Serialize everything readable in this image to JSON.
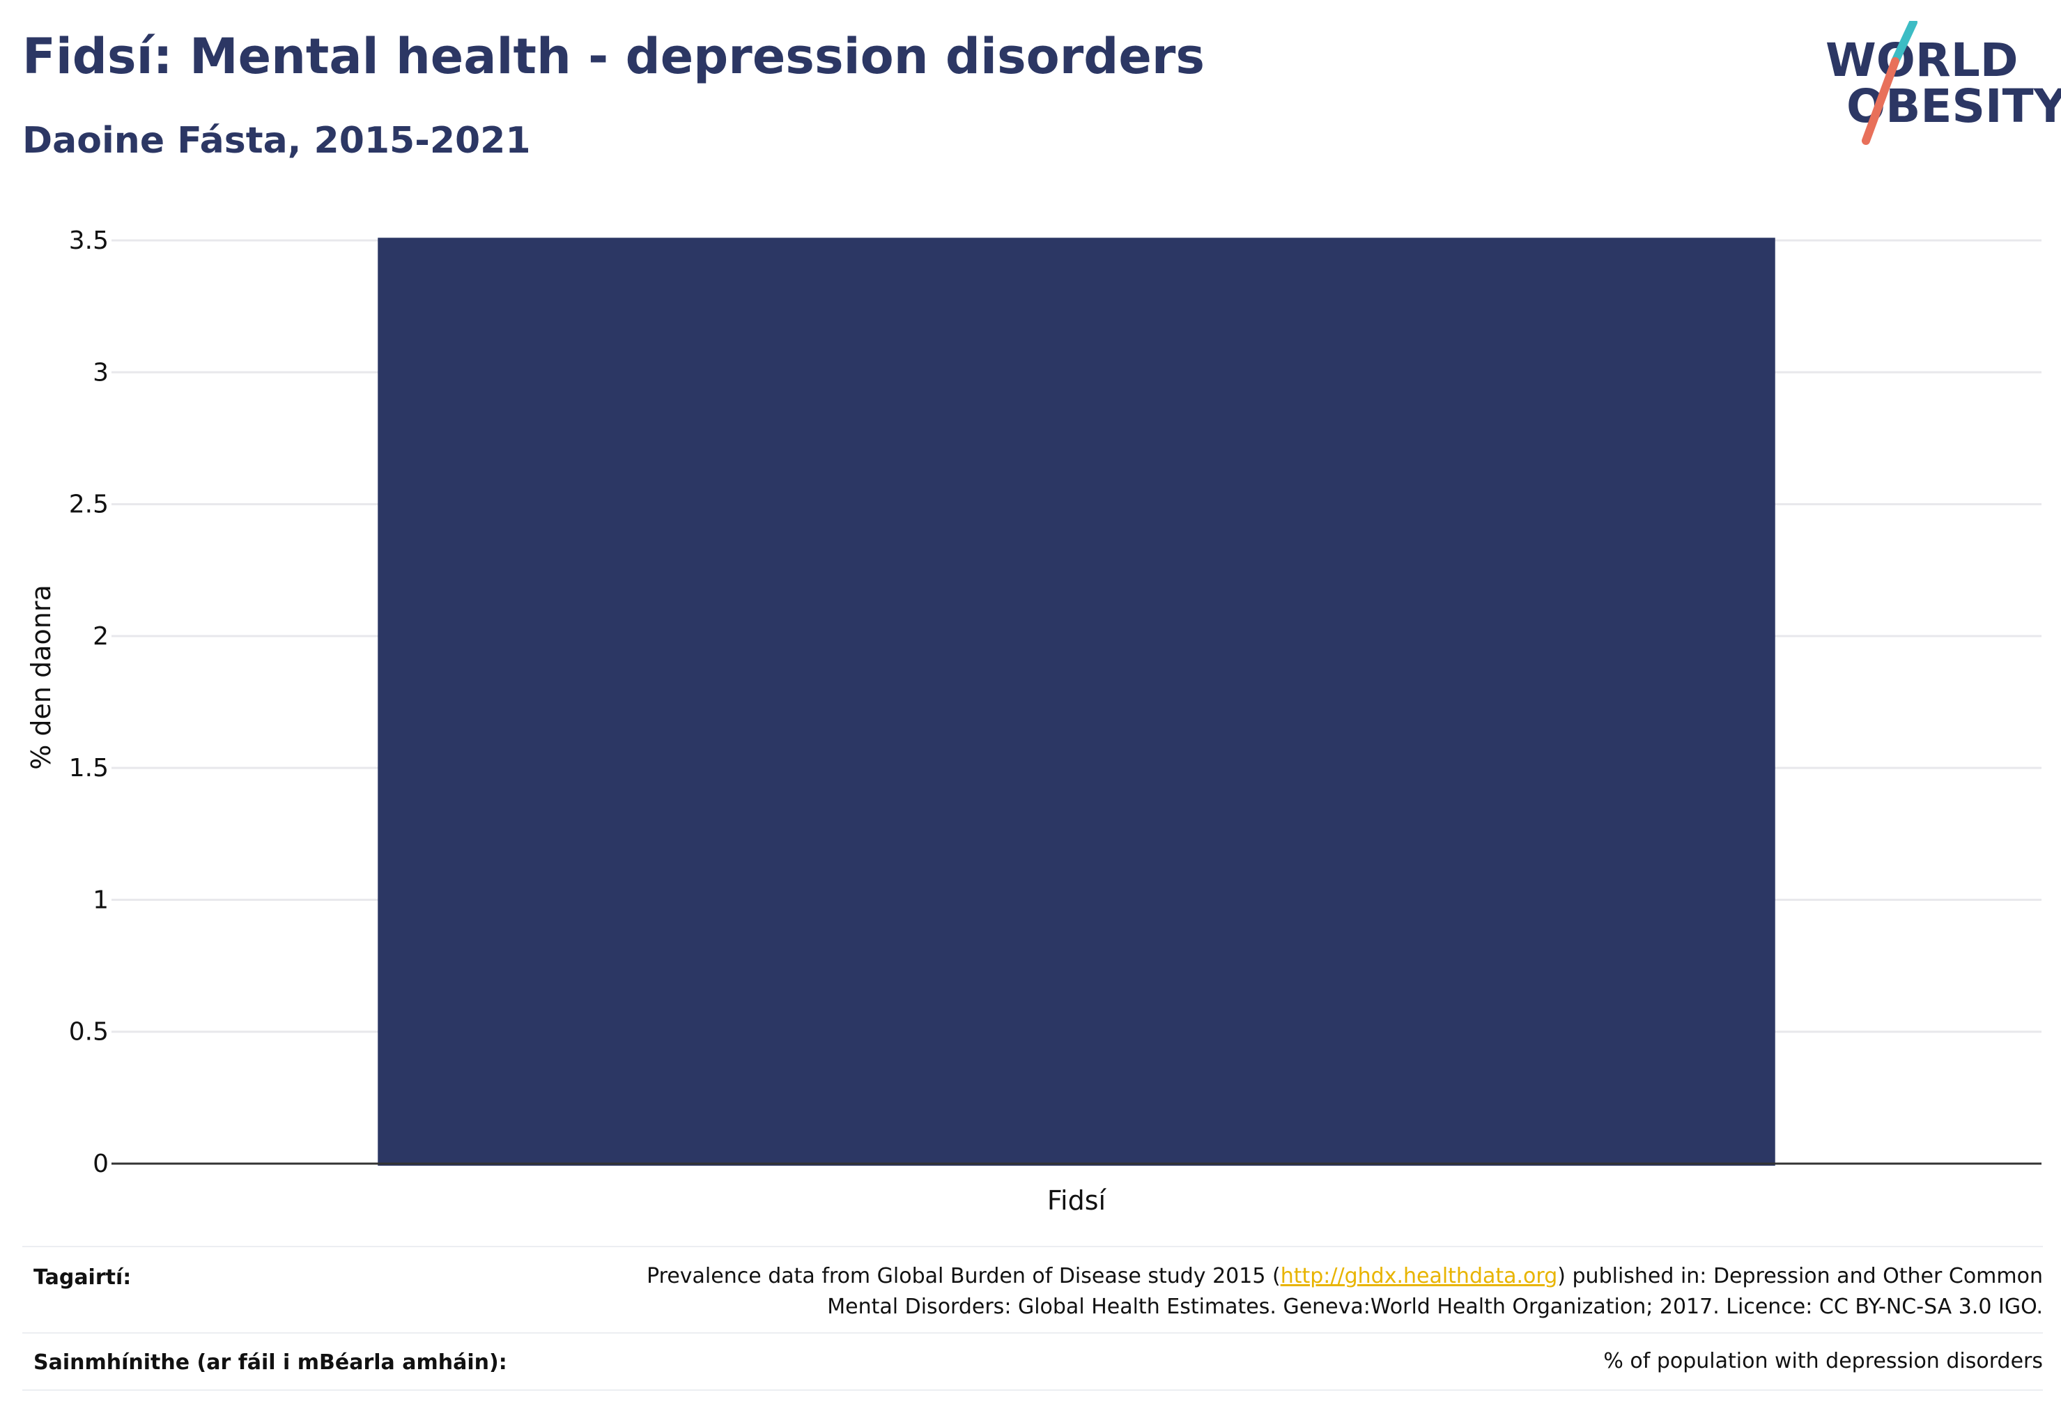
{
  "header": {
    "title": "Fidsí: Mental health - depression disorders",
    "subtitle": "Daoine Fásta, 2015-2021"
  },
  "logo": {
    "line1": "WORLD",
    "line2": "OBESITY"
  },
  "chart_data": {
    "type": "bar",
    "categories": [
      "Fidsí"
    ],
    "values": [
      3.51
    ],
    "ylabel": "% den daonra",
    "ylim": [
      0,
      3.5
    ],
    "yticks": [
      "0",
      "0.5",
      "1",
      "1.5",
      "2",
      "2.5",
      "3",
      "3.5"
    ],
    "ytick_values": [
      0,
      0.5,
      1,
      1.5,
      2,
      2.5,
      3,
      3.5
    ],
    "grid": true,
    "bar_color": "#2c3764"
  },
  "footer": {
    "references_label": "Tagairtí:",
    "references_text_1a": "Prevalence data from Global Burden of Disease study 2015 (",
    "references_link": "http://ghdx.healthdata.org",
    "references_text_1b": ") published in: Depression and Other Common",
    "references_text_2": "Mental Disorders: Global Health Estimates. Geneva:World Health Organization; 2017. Licence: CC BY-NC-SA 3.0 IGO.",
    "definitions_label": "Sainmhínithe (ar fáil i mBéarla amháin):",
    "definitions_text": "% of population with depression disorders"
  },
  "colors": {
    "title": "#2c3764",
    "link": "#e8b400",
    "logo_teal": "#3cbcc4",
    "logo_coral": "#e8705a"
  }
}
